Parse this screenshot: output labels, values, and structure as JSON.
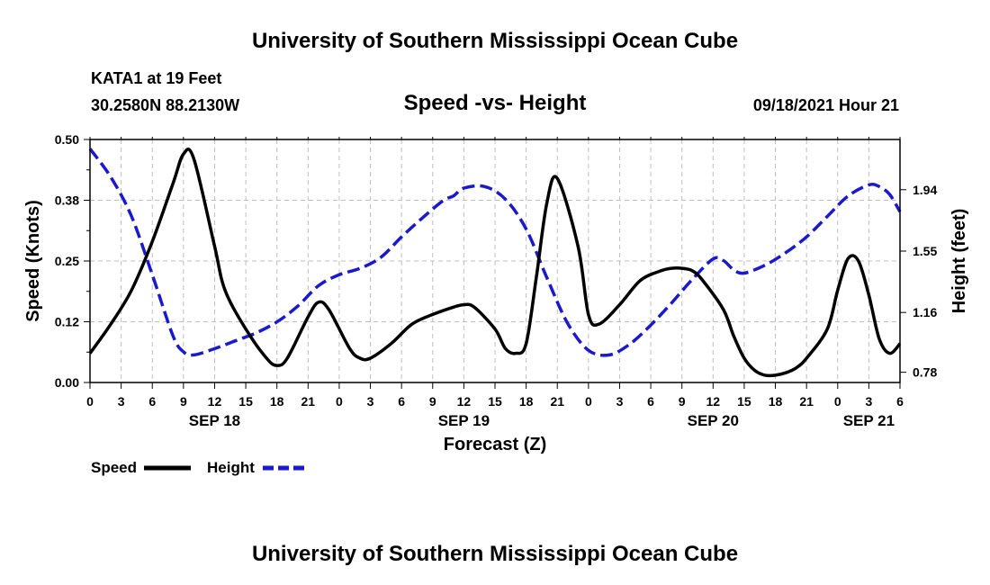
{
  "page": {
    "title_top": "University of Southern Mississippi Ocean Cube",
    "title_bottom": "University of Southern Mississippi Ocean Cube",
    "station": "KATA1 at 19 Feet",
    "coords": "30.2580N  88.2130W",
    "subtitle": "Speed -vs- Height",
    "datetime": "09/18/2021 Hour 21"
  },
  "colors": {
    "speed": "#000000",
    "height": "#1a1acc",
    "grid": "#bfbfbf"
  },
  "chart_data": {
    "type": "line",
    "title": "Speed -vs- Height",
    "xlabel": "Forecast (Z)",
    "ylabel_left": "Speed (Knots)",
    "ylabel_right": "Height (feet)",
    "x_unit": "hours since SEP 18 00Z",
    "xlim": [
      0,
      78
    ],
    "ylim_left": [
      0,
      0.5
    ],
    "ylim_right": [
      0.715,
      2.259
    ],
    "grid": true,
    "x_ticks": [
      0,
      3,
      6,
      9,
      12,
      15,
      18,
      21,
      24,
      27,
      30,
      33,
      36,
      39,
      42,
      45,
      48,
      51,
      54,
      57,
      60,
      63,
      66,
      69,
      72,
      75,
      78
    ],
    "x_tick_labels": [
      "0",
      "3",
      "6",
      "9",
      "12",
      "15",
      "18",
      "21",
      "0",
      "3",
      "6",
      "9",
      "12",
      "15",
      "18",
      "21",
      "0",
      "3",
      "6",
      "9",
      "12",
      "15",
      "18",
      "21",
      "0",
      "3",
      "6"
    ],
    "day_labels": [
      {
        "x": 12,
        "label": "SEP 18"
      },
      {
        "x": 36,
        "label": "SEP 19"
      },
      {
        "x": 60,
        "label": "SEP 20"
      },
      {
        "x": 75,
        "label": "SEP 21"
      }
    ],
    "y_left_ticks": [
      0.0,
      0.125,
      0.25,
      0.375,
      0.5
    ],
    "y_left_tick_labels": [
      "0.00",
      "0.12",
      "0.25",
      "0.38",
      "0.50"
    ],
    "y_right_ticks": [
      0.78,
      1.16,
      1.55,
      1.94
    ],
    "y_right_tick_labels": [
      "0.78",
      "1.16",
      "1.55",
      "1.94"
    ],
    "series": [
      {
        "name": "Speed",
        "axis": "left",
        "style": "solid",
        "x": [
          0,
          2,
          4,
          6,
          8,
          9,
          10,
          12,
          13,
          15,
          17,
          18,
          19,
          21,
          22,
          23,
          25,
          26,
          27,
          29,
          31,
          33,
          35,
          36,
          37,
          39,
          40,
          41,
          42,
          43,
          44,
          45,
          47,
          48,
          49,
          51,
          53,
          55,
          56,
          57,
          58,
          59,
          61,
          62,
          63,
          64,
          65,
          66,
          67,
          68,
          69,
          71,
          72,
          73,
          74,
          75,
          76,
          77,
          78
        ],
        "values": [
          0.06,
          0.12,
          0.19,
          0.29,
          0.41,
          0.47,
          0.46,
          0.28,
          0.19,
          0.11,
          0.05,
          0.035,
          0.05,
          0.135,
          0.165,
          0.15,
          0.07,
          0.05,
          0.05,
          0.08,
          0.12,
          0.14,
          0.155,
          0.16,
          0.155,
          0.11,
          0.07,
          0.06,
          0.08,
          0.22,
          0.37,
          0.42,
          0.28,
          0.14,
          0.12,
          0.16,
          0.21,
          0.23,
          0.235,
          0.235,
          0.23,
          0.21,
          0.15,
          0.095,
          0.05,
          0.025,
          0.015,
          0.015,
          0.02,
          0.03,
          0.05,
          0.11,
          0.19,
          0.255,
          0.25,
          0.18,
          0.09,
          0.06,
          0.08
        ]
      },
      {
        "name": "Height",
        "axis": "right",
        "style": "dashed",
        "x": [
          0,
          2,
          4,
          6,
          8,
          9,
          10,
          12,
          14,
          16,
          18,
          20,
          22,
          24,
          26,
          28,
          30,
          32,
          34,
          35,
          36,
          38,
          40,
          42,
          44,
          46,
          48,
          50,
          52,
          54,
          56,
          58,
          60,
          61,
          62,
          63,
          65,
          67,
          69,
          71,
          73,
          75,
          76,
          77,
          78
        ],
        "values": [
          2.2,
          2.02,
          1.77,
          1.4,
          1.01,
          0.91,
          0.89,
          0.93,
          0.98,
          1.03,
          1.1,
          1.2,
          1.33,
          1.4,
          1.44,
          1.51,
          1.64,
          1.76,
          1.87,
          1.9,
          1.95,
          1.96,
          1.88,
          1.69,
          1.38,
          1.09,
          0.92,
          0.89,
          0.96,
          1.08,
          1.22,
          1.37,
          1.5,
          1.49,
          1.43,
          1.41,
          1.46,
          1.54,
          1.64,
          1.77,
          1.9,
          1.97,
          1.96,
          1.91,
          1.8
        ]
      }
    ],
    "legend": [
      {
        "label": "Speed",
        "style": "solid"
      },
      {
        "label": "Height",
        "style": "dashed"
      }
    ],
    "legend_position": "bottom-left"
  }
}
